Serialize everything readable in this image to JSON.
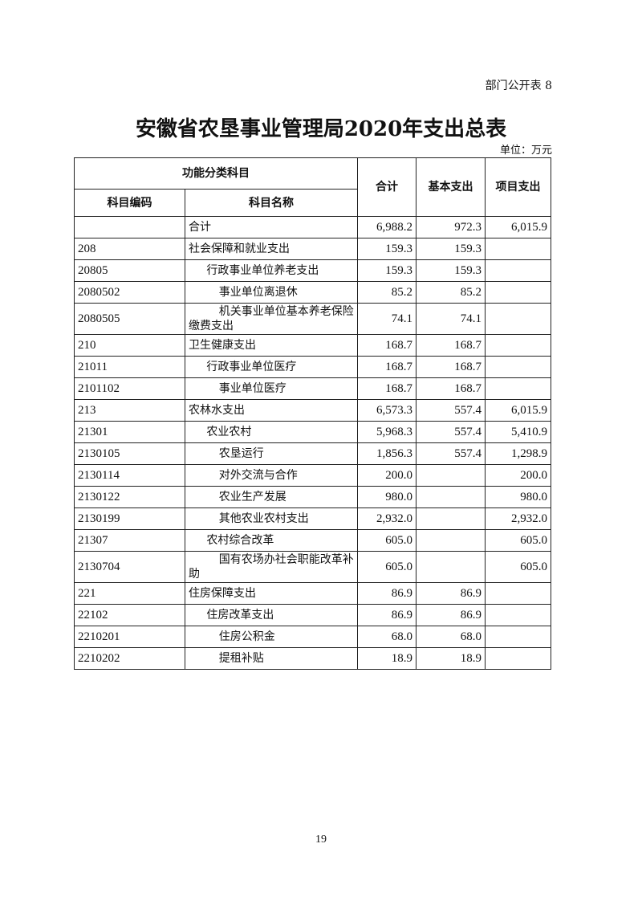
{
  "form_number": "部门公开表 8",
  "title": "安徽省农垦事业管理局2020年支出总表",
  "unit": "单位：万元",
  "headers": {
    "group": "功能分类科目",
    "code": "科目编码",
    "name": "科目名称",
    "total": "合计",
    "basic": "基本支出",
    "project": "项目支出"
  },
  "rows": [
    {
      "code": "",
      "name": "合计",
      "level": 0,
      "total": "6,988.2",
      "basic": "972.3",
      "project": "6,015.9"
    },
    {
      "code": "208",
      "name": "社会保障和就业支出",
      "level": 0,
      "total": "159.3",
      "basic": "159.3",
      "project": ""
    },
    {
      "code": "20805",
      "name": "行政事业单位养老支出",
      "level": 1,
      "total": "159.3",
      "basic": "159.3",
      "project": ""
    },
    {
      "code": "2080502",
      "name": "事业单位离退休",
      "level": 2,
      "total": "85.2",
      "basic": "85.2",
      "project": ""
    },
    {
      "code": "2080505",
      "name": "机关事业单位基本养老保险缴费支出",
      "level": 2,
      "total": "74.1",
      "basic": "74.1",
      "project": ""
    },
    {
      "code": "210",
      "name": "卫生健康支出",
      "level": 0,
      "total": "168.7",
      "basic": "168.7",
      "project": ""
    },
    {
      "code": "21011",
      "name": "行政事业单位医疗",
      "level": 1,
      "total": "168.7",
      "basic": "168.7",
      "project": ""
    },
    {
      "code": "2101102",
      "name": "事业单位医疗",
      "level": 2,
      "total": "168.7",
      "basic": "168.7",
      "project": ""
    },
    {
      "code": "213",
      "name": "农林水支出",
      "level": 0,
      "total": "6,573.3",
      "basic": "557.4",
      "project": "6,015.9"
    },
    {
      "code": "21301",
      "name": "农业农村",
      "level": 1,
      "total": "5,968.3",
      "basic": "557.4",
      "project": "5,410.9"
    },
    {
      "code": "2130105",
      "name": "农垦运行",
      "level": 2,
      "total": "1,856.3",
      "basic": "557.4",
      "project": "1,298.9"
    },
    {
      "code": "2130114",
      "name": "对外交流与合作",
      "level": 2,
      "total": "200.0",
      "basic": "",
      "project": "200.0"
    },
    {
      "code": "2130122",
      "name": "农业生产发展",
      "level": 2,
      "total": "980.0",
      "basic": "",
      "project": "980.0"
    },
    {
      "code": "2130199",
      "name": "其他农业农村支出",
      "level": 2,
      "total": "2,932.0",
      "basic": "",
      "project": "2,932.0"
    },
    {
      "code": "21307",
      "name": "农村综合改革",
      "level": 1,
      "total": "605.0",
      "basic": "",
      "project": "605.0"
    },
    {
      "code": "2130704",
      "name": "国有农场办社会职能改革补助",
      "level": 2,
      "total": "605.0",
      "basic": "",
      "project": "605.0"
    },
    {
      "code": "221",
      "name": "住房保障支出",
      "level": 0,
      "total": "86.9",
      "basic": "86.9",
      "project": ""
    },
    {
      "code": "22102",
      "name": "住房改革支出",
      "level": 1,
      "total": "86.9",
      "basic": "86.9",
      "project": ""
    },
    {
      "code": "2210201",
      "name": "住房公积金",
      "level": 2,
      "total": "68.0",
      "basic": "68.0",
      "project": ""
    },
    {
      "code": "2210202",
      "name": "提租补贴",
      "level": 2,
      "total": "18.9",
      "basic": "18.9",
      "project": ""
    }
  ],
  "page_number": "19"
}
